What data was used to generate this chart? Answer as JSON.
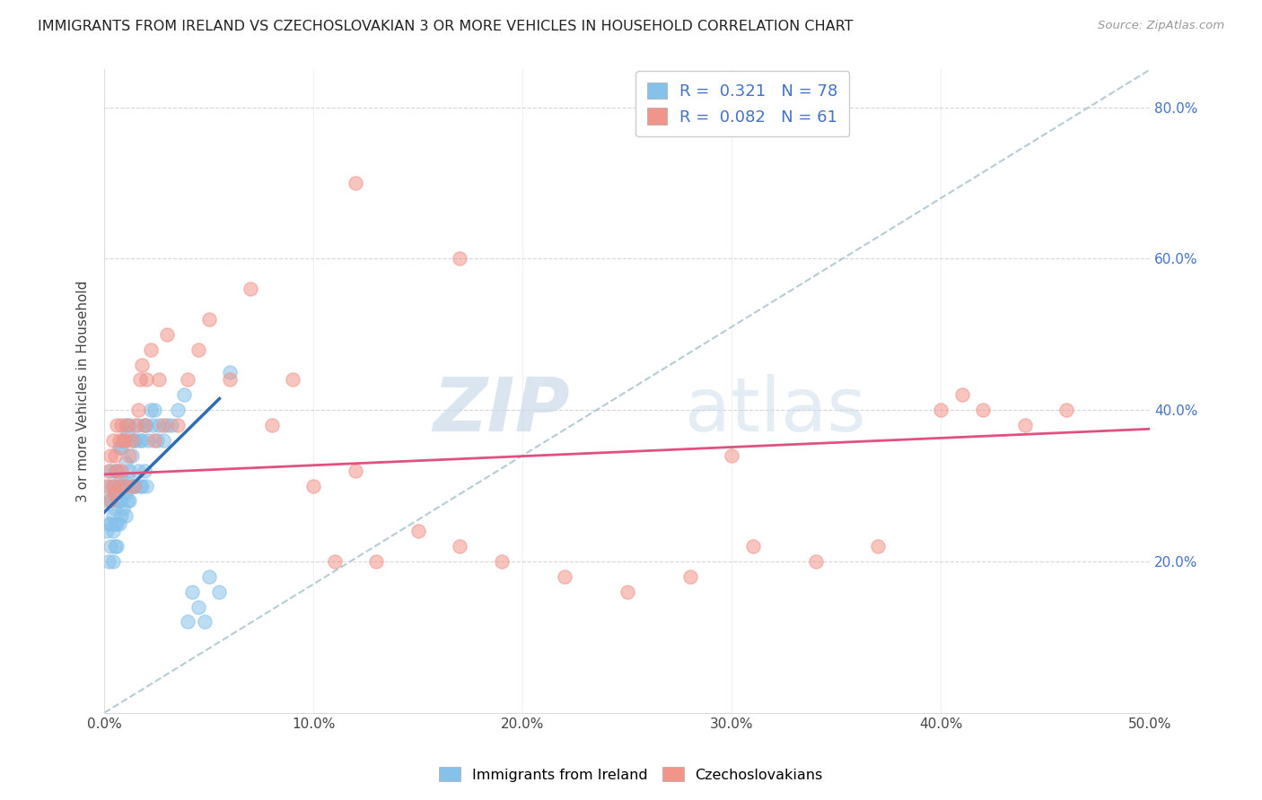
{
  "title": "IMMIGRANTS FROM IRELAND VS CZECHOSLOVAKIAN 3 OR MORE VEHICLES IN HOUSEHOLD CORRELATION CHART",
  "source": "Source: ZipAtlas.com",
  "ylabel": "3 or more Vehicles in Household",
  "xlim": [
    0.0,
    0.5
  ],
  "ylim": [
    0.0,
    0.85
  ],
  "xtick_labels": [
    "0.0%",
    "",
    "",
    "",
    "",
    "",
    "",
    "",
    "",
    "",
    "10.0%",
    "",
    "",
    "",
    "",
    "",
    "",
    "",
    "",
    "",
    "20.0%",
    "",
    "",
    "",
    "",
    "",
    "",
    "",
    "",
    "",
    "30.0%",
    "",
    "",
    "",
    "",
    "",
    "",
    "",
    "",
    "",
    "40.0%",
    "",
    "",
    "",
    "",
    "",
    "",
    "",
    "",
    "",
    "50.0%"
  ],
  "xtick_vals": [
    0.0,
    0.01,
    0.02,
    0.03,
    0.04,
    0.05,
    0.06,
    0.07,
    0.08,
    0.09,
    0.1,
    0.11,
    0.12,
    0.13,
    0.14,
    0.15,
    0.16,
    0.17,
    0.18,
    0.19,
    0.2,
    0.21,
    0.22,
    0.23,
    0.24,
    0.25,
    0.26,
    0.27,
    0.28,
    0.29,
    0.3,
    0.31,
    0.32,
    0.33,
    0.34,
    0.35,
    0.36,
    0.37,
    0.38,
    0.39,
    0.4,
    0.41,
    0.42,
    0.43,
    0.44,
    0.45,
    0.46,
    0.47,
    0.48,
    0.49,
    0.5
  ],
  "xtick_major_vals": [
    0.0,
    0.1,
    0.2,
    0.3,
    0.4,
    0.5
  ],
  "xtick_major_labels": [
    "0.0%",
    "10.0%",
    "20.0%",
    "30.0%",
    "40.0%",
    "50.0%"
  ],
  "ytick_labels": [
    "20.0%",
    "40.0%",
    "60.0%",
    "80.0%"
  ],
  "ytick_vals": [
    0.2,
    0.4,
    0.6,
    0.8
  ],
  "blue_scatter_x": [
    0.001,
    0.001,
    0.002,
    0.002,
    0.002,
    0.003,
    0.003,
    0.003,
    0.003,
    0.004,
    0.004,
    0.004,
    0.004,
    0.005,
    0.005,
    0.005,
    0.005,
    0.005,
    0.006,
    0.006,
    0.006,
    0.006,
    0.007,
    0.007,
    0.007,
    0.007,
    0.008,
    0.008,
    0.008,
    0.008,
    0.009,
    0.009,
    0.009,
    0.01,
    0.01,
    0.01,
    0.01,
    0.011,
    0.011,
    0.011,
    0.012,
    0.012,
    0.012,
    0.013,
    0.013,
    0.014,
    0.014,
    0.015,
    0.015,
    0.016,
    0.016,
    0.017,
    0.017,
    0.018,
    0.018,
    0.019,
    0.019,
    0.02,
    0.02,
    0.021,
    0.022,
    0.023,
    0.024,
    0.025,
    0.026,
    0.028,
    0.03,
    0.032,
    0.035,
    0.038,
    0.04,
    0.042,
    0.045,
    0.048,
    0.05,
    0.055,
    0.06
  ],
  "blue_scatter_y": [
    0.24,
    0.28,
    0.2,
    0.25,
    0.3,
    0.22,
    0.25,
    0.28,
    0.32,
    0.2,
    0.24,
    0.26,
    0.3,
    0.22,
    0.25,
    0.27,
    0.29,
    0.32,
    0.22,
    0.25,
    0.28,
    0.32,
    0.25,
    0.28,
    0.3,
    0.35,
    0.26,
    0.28,
    0.31,
    0.35,
    0.27,
    0.3,
    0.36,
    0.26,
    0.29,
    0.33,
    0.38,
    0.28,
    0.31,
    0.37,
    0.28,
    0.32,
    0.38,
    0.3,
    0.34,
    0.3,
    0.36,
    0.3,
    0.36,
    0.32,
    0.38,
    0.3,
    0.36,
    0.3,
    0.36,
    0.32,
    0.38,
    0.3,
    0.38,
    0.36,
    0.4,
    0.38,
    0.4,
    0.36,
    0.38,
    0.36,
    0.38,
    0.38,
    0.4,
    0.42,
    0.12,
    0.16,
    0.14,
    0.12,
    0.18,
    0.16,
    0.45
  ],
  "pink_scatter_x": [
    0.001,
    0.002,
    0.003,
    0.003,
    0.004,
    0.004,
    0.005,
    0.005,
    0.006,
    0.006,
    0.007,
    0.007,
    0.008,
    0.008,
    0.009,
    0.01,
    0.01,
    0.011,
    0.012,
    0.013,
    0.014,
    0.015,
    0.016,
    0.017,
    0.018,
    0.019,
    0.02,
    0.022,
    0.024,
    0.026,
    0.028,
    0.03,
    0.035,
    0.04,
    0.045,
    0.05,
    0.06,
    0.07,
    0.08,
    0.09,
    0.1,
    0.11,
    0.12,
    0.13,
    0.15,
    0.17,
    0.19,
    0.22,
    0.25,
    0.28,
    0.31,
    0.34,
    0.37,
    0.4,
    0.42,
    0.44,
    0.46,
    0.12,
    0.3,
    0.41,
    0.17
  ],
  "pink_scatter_y": [
    0.3,
    0.32,
    0.28,
    0.34,
    0.3,
    0.36,
    0.29,
    0.34,
    0.32,
    0.38,
    0.3,
    0.36,
    0.32,
    0.38,
    0.36,
    0.3,
    0.36,
    0.38,
    0.34,
    0.36,
    0.3,
    0.38,
    0.4,
    0.44,
    0.46,
    0.38,
    0.44,
    0.48,
    0.36,
    0.44,
    0.38,
    0.5,
    0.38,
    0.44,
    0.48,
    0.52,
    0.44,
    0.56,
    0.38,
    0.44,
    0.3,
    0.2,
    0.32,
    0.2,
    0.24,
    0.22,
    0.2,
    0.18,
    0.16,
    0.18,
    0.22,
    0.2,
    0.22,
    0.4,
    0.4,
    0.38,
    0.4,
    0.7,
    0.34,
    0.42,
    0.6
  ],
  "blue_line_x": [
    0.0,
    0.055
  ],
  "blue_line_y": [
    0.265,
    0.415
  ],
  "pink_line_x": [
    0.0,
    0.5
  ],
  "pink_line_y": [
    0.315,
    0.375
  ],
  "diag_line_x": [
    0.0,
    0.5
  ],
  "diag_line_y": [
    0.0,
    0.85
  ],
  "blue_color": "#85C1E9",
  "pink_color": "#F1948A",
  "blue_line_color": "#2E6DB4",
  "pink_line_color": "#E05080",
  "diag_color": "#AEC6CF",
  "watermark_zip": "ZIP",
  "watermark_atlas": "atlas",
  "background_color": "#FFFFFF",
  "grid_color": "#CCCCCC",
  "title_fontsize": 11.5,
  "axis_fontsize": 11
}
